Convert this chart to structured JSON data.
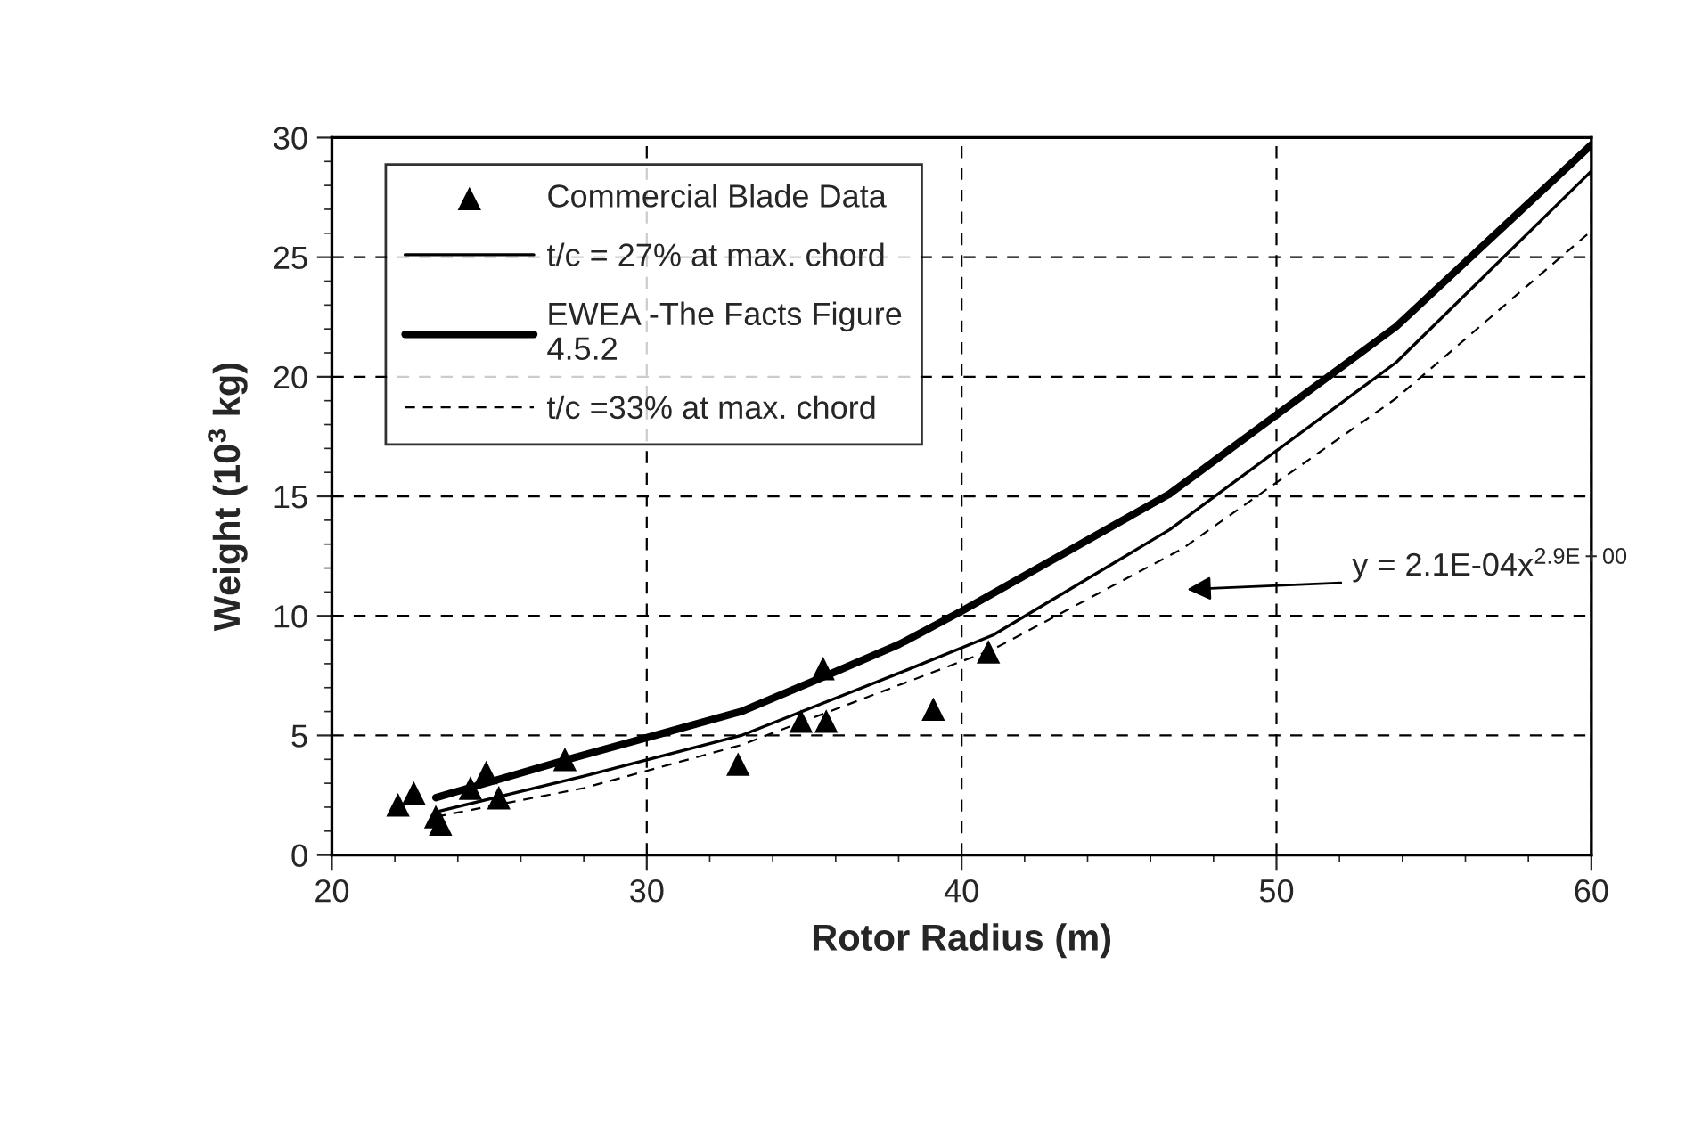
{
  "chart_data": {
    "type": "scatter",
    "xlabel": "Rotor Radius (m)",
    "ylabel": "Weight (10$^{3}$ kg)",
    "xlim": [
      20,
      60
    ],
    "xticks": [
      20,
      30,
      40,
      50,
      60
    ],
    "ylim": [
      0,
      30
    ],
    "yticks": [
      0,
      5,
      10,
      15,
      20,
      25,
      30
    ],
    "grid": true,
    "legend": "top left",
    "series": [
      {
        "name": "Commercial Blade Data",
        "type": "scatter",
        "marker": "triangle",
        "color": "#000000",
        "x": [
          22.1,
          22.6,
          23.3,
          23.45,
          24.4,
          24.9,
          25.3,
          27.4,
          32.9,
          34.9,
          35.6,
          35.7,
          39.1,
          40.85
        ],
        "values": [
          2.1,
          2.6,
          1.6,
          1.3,
          2.8,
          3.45,
          2.4,
          4.0,
          3.8,
          5.6,
          7.8,
          5.6,
          6.1,
          8.5
        ]
      },
      {
        "name": "t/c = 27% at max. chord",
        "type": "line",
        "line_style": "solid",
        "color": "#000000",
        "x": [
          23.3,
          28,
          33,
          38,
          41,
          46.6,
          53.8,
          60
        ],
        "values": [
          1.8,
          3.3,
          5.0,
          7.6,
          9.2,
          13.6,
          20.6,
          28.6
        ]
      },
      {
        "name": "EWEA -The Facts Figure\n4.5.2",
        "type": "line",
        "line_style": "solid",
        "color": "#000000",
        "x": [
          23.3,
          27.5,
          33,
          35.7,
          38,
          40,
          46.6,
          53.8,
          60
        ],
        "values": [
          2.4,
          4.0,
          6.0,
          7.5,
          8.8,
          10.2,
          15.1,
          22.1,
          29.7
        ]
      },
      {
        "name": "t/c =33% at max. chord",
        "type": "line",
        "line_style": "dashed",
        "color": "#000000",
        "x": [
          23.3,
          28,
          33,
          38,
          41,
          47,
          53.8,
          60
        ],
        "values": [
          1.6,
          2.8,
          4.6,
          7.1,
          8.6,
          12.8,
          19.1,
          26.1
        ]
      }
    ],
    "annotations": [
      "y = 2.1E-04x$^{2.9E+00}$"
    ]
  }
}
